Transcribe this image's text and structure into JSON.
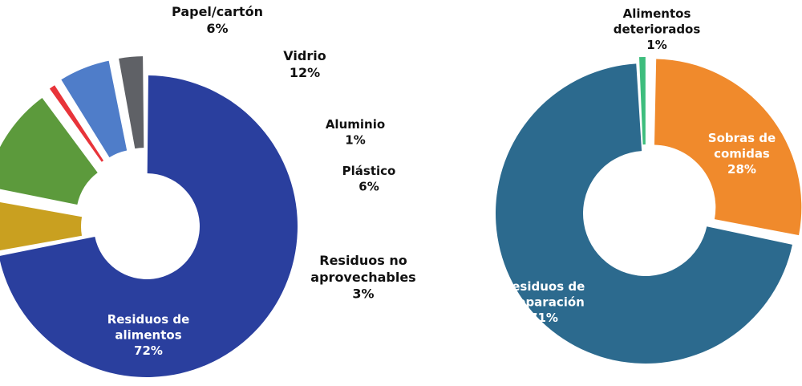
{
  "chart_data": [
    {
      "type": "pie",
      "donut": true,
      "title": "",
      "categories": [
        "Residuos de alimentos",
        "Papel/cartón",
        "Vidrio",
        "Aluminio",
        "Plástico",
        "Residuos no aprovechables"
      ],
      "values": [
        72,
        6,
        12,
        1,
        6,
        3
      ],
      "series": [
        {
          "label_lines": [
            "Residuos de",
            "alimentos"
          ],
          "value": 72,
          "value_label": "72%",
          "color": "#2a3f9e",
          "label_color": "#ffffff"
        },
        {
          "label_lines": [
            "Papel/cartón"
          ],
          "value": 6,
          "value_label": "6%",
          "color": "#c9a020",
          "label_color": "#111111"
        },
        {
          "label_lines": [
            "Vidrio"
          ],
          "value": 12,
          "value_label": "12%",
          "color": "#5c9a3c",
          "label_color": "#111111"
        },
        {
          "label_lines": [
            "Aluminio"
          ],
          "value": 1,
          "value_label": "1%",
          "color": "#e8343a",
          "label_color": "#111111"
        },
        {
          "label_lines": [
            "Plástico"
          ],
          "value": 6,
          "value_label": "6%",
          "color": "#4f7dc9",
          "label_color": "#111111"
        },
        {
          "label_lines": [
            "Residuos no",
            "aprovechables"
          ],
          "value": 3,
          "value_label": "3%",
          "color": "#5f6166",
          "label_color": "#111111"
        }
      ]
    },
    {
      "type": "pie",
      "donut": true,
      "title": "",
      "categories": [
        "Alimentos deteriorados",
        "Sobras de comidas",
        "Residuos de preparación"
      ],
      "values": [
        1,
        28,
        71
      ],
      "series": [
        {
          "label_lines": [
            "Alimentos",
            "deteriorados"
          ],
          "value": 1,
          "value_label": "1%",
          "color": "#3dbd7d",
          "label_color": "#111111"
        },
        {
          "label_lines": [
            "Sobras de",
            "comidas"
          ],
          "value": 28,
          "value_label": "28%",
          "color": "#f08a2c",
          "label_color": "#ffffff"
        },
        {
          "label_lines": [
            "Residuos de",
            "preparación"
          ],
          "value": 71,
          "value_label": "71%",
          "color": "#2c6a8e",
          "label_color": "#ffffff"
        }
      ]
    }
  ]
}
